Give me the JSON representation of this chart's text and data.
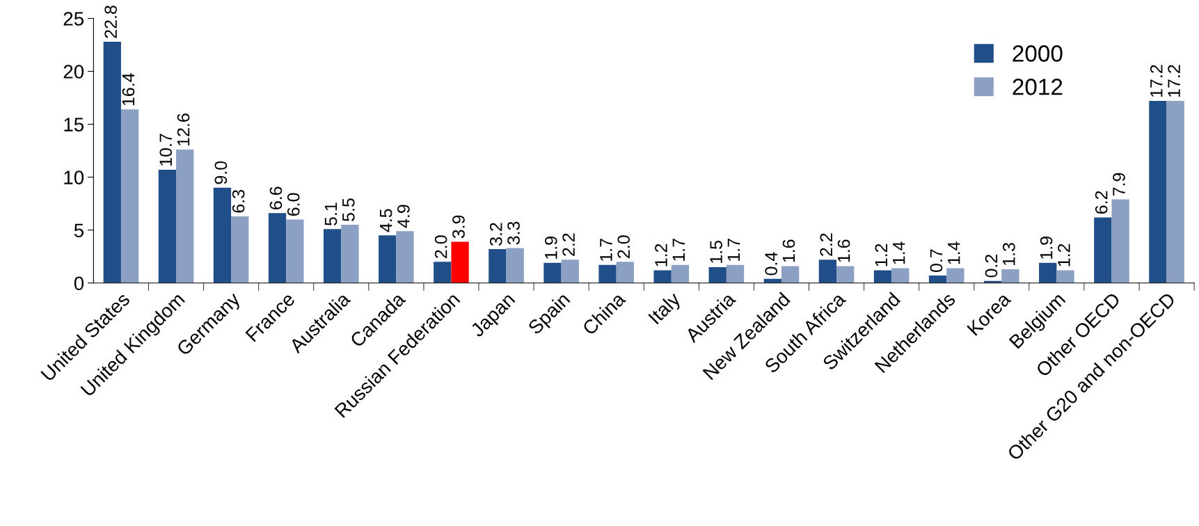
{
  "chart_data": {
    "type": "bar",
    "categories": [
      "United States",
      "United Kingdom",
      "Germany",
      "France",
      "Australia",
      "Canada",
      "Russian Federation",
      "Japan",
      "Spain",
      "China",
      "Italy",
      "Austria",
      "New Zealand",
      "South Africa",
      "Switzerland",
      "Netherlands",
      "Korea",
      "Belgium",
      "Other OECD",
      "Other G20 and non-OECD"
    ],
    "series": [
      {
        "name": "2000",
        "color": "#1f4e89",
        "values": [
          22.8,
          10.7,
          9.0,
          6.6,
          5.1,
          4.5,
          2.0,
          3.2,
          1.9,
          1.7,
          1.2,
          1.5,
          0.4,
          2.2,
          1.2,
          0.7,
          0.2,
          1.9,
          6.2,
          17.2
        ],
        "value_labels": [
          "22.8",
          "10.7",
          "9.0",
          "6.6",
          "5.1",
          "4.5",
          "2.0",
          "3.2",
          "1.9",
          "1.7",
          "1.2",
          "1.5",
          "0.4",
          "2.2",
          "1.2",
          "0.7",
          "0.2",
          "1.9",
          "6.2",
          "17.2"
        ]
      },
      {
        "name": "2012",
        "color": "#8ba0c3",
        "colors": [
          "#8ba0c3",
          "#8ba0c3",
          "#8ba0c3",
          "#8ba0c3",
          "#8ba0c3",
          "#8ba0c3",
          "#ff0000",
          "#8ba0c3",
          "#8ba0c3",
          "#8ba0c3",
          "#8ba0c3",
          "#8ba0c3",
          "#8ba0c3",
          "#8ba0c3",
          "#8ba0c3",
          "#8ba0c3",
          "#8ba0c3",
          "#8ba0c3",
          "#8ba0c3",
          "#8ba0c3"
        ],
        "values": [
          16.4,
          12.6,
          6.3,
          6.0,
          5.5,
          4.9,
          3.9,
          3.3,
          2.2,
          2.0,
          1.7,
          1.7,
          1.6,
          1.6,
          1.4,
          1.4,
          1.3,
          1.2,
          7.9,
          17.2
        ],
        "value_labels": [
          "16.4",
          "12.6",
          "6.3",
          "6.0",
          "5.5",
          "4.9",
          "3.9",
          "3.3",
          "2.2",
          "2.0",
          "1.7",
          "1.7",
          "1.6",
          "1.6",
          "1.4",
          "1.4",
          "1.3",
          "1.2",
          "7.9",
          "17.2"
        ]
      }
    ],
    "ylim": [
      0,
      25
    ],
    "yticks": [
      0,
      5,
      10,
      15,
      20,
      25
    ],
    "grid": false,
    "legend": "top right"
  }
}
